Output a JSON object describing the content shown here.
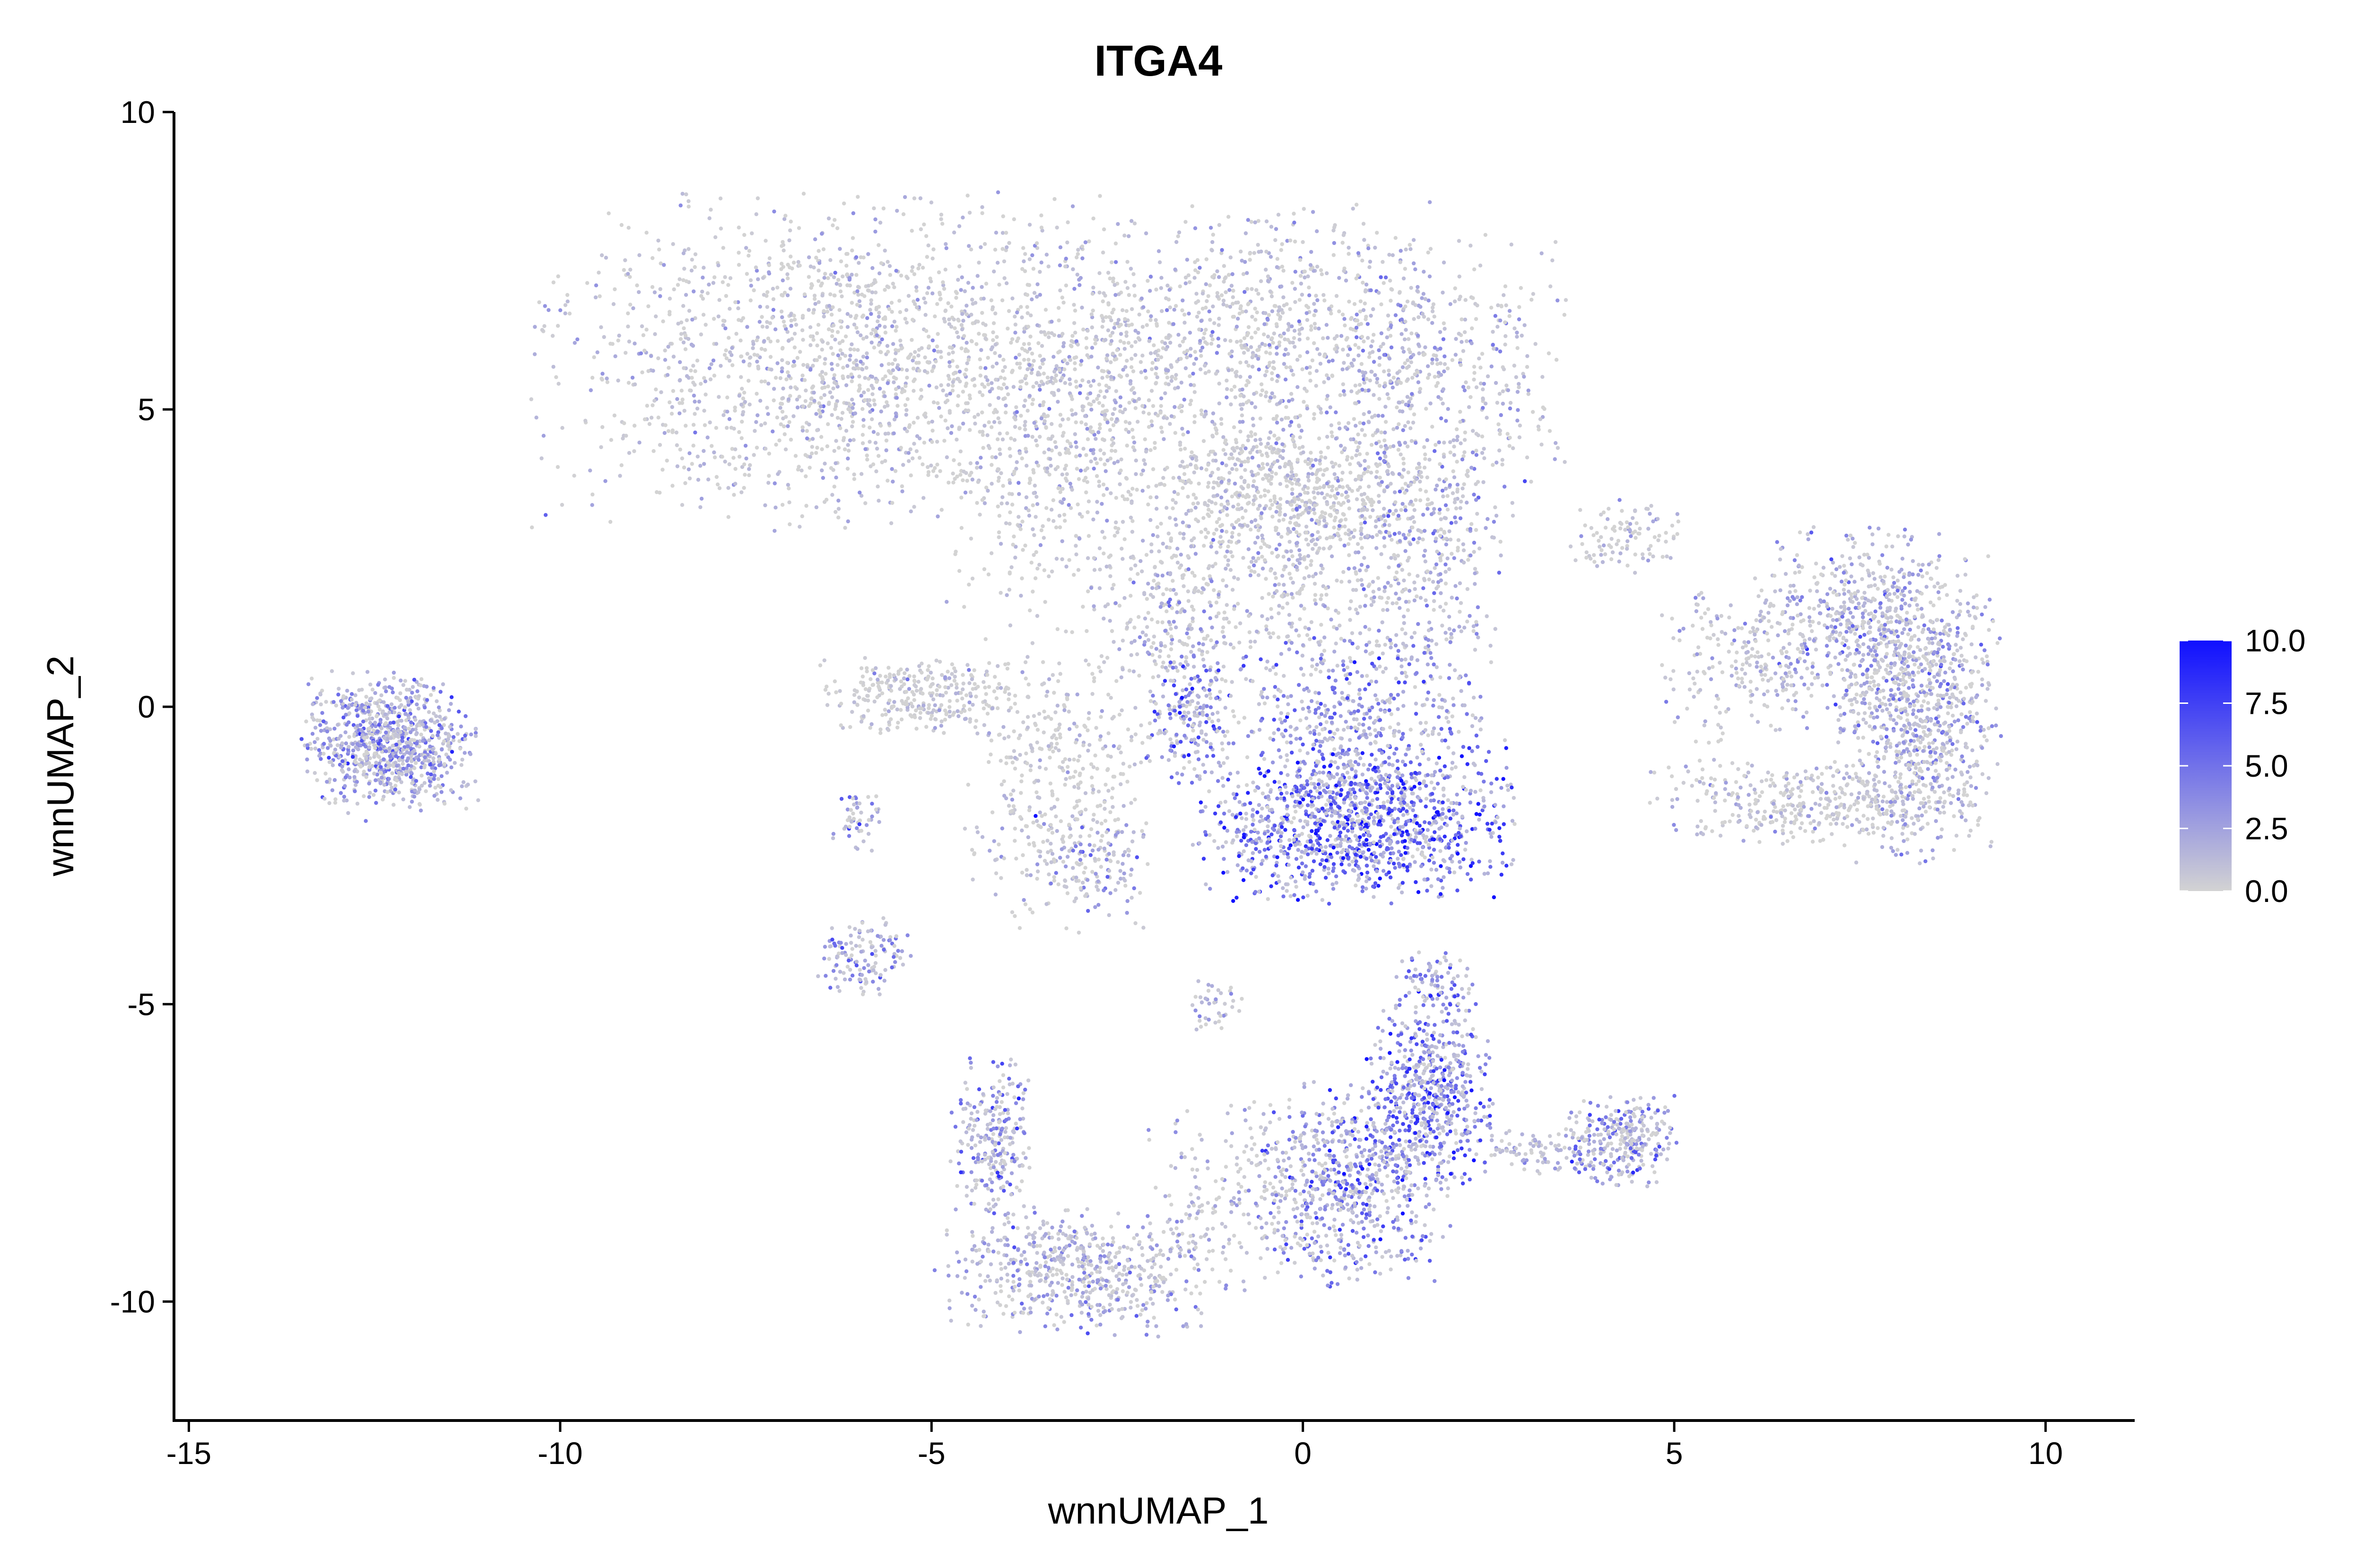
{
  "chart_data": {
    "type": "scatter",
    "title": "ITGA4",
    "xlabel": "wnnUMAP_1",
    "ylabel": "wnnUMAP_2",
    "xlim": [
      -15.2,
      11.2
    ],
    "ylim": [
      -12,
      10
    ],
    "xticks": [
      -15,
      -10,
      -5,
      0,
      5,
      10
    ],
    "xtick_labels": [
      "-15",
      "-10",
      "-5",
      "0",
      "5",
      "10"
    ],
    "yticks": [
      -10,
      -5,
      0,
      5,
      10
    ],
    "ytick_labels": [
      "-10",
      "-5",
      "0",
      "5",
      "10"
    ],
    "grid": false,
    "legend_position": "right",
    "color_scale": {
      "min": 0,
      "max": 10,
      "low_color": "#d3d3d3",
      "high_color": "#1010ff",
      "ticks": [
        10,
        7.5,
        5,
        2.5,
        0
      ],
      "tick_labels": [
        "10.0",
        "7.5",
        "5.0",
        "2.5",
        "0.0"
      ]
    },
    "clusters": [
      {
        "cx": -6.0,
        "cy": 5.8,
        "sx": 2.0,
        "sy": 1.3,
        "n": 1800,
        "level": 0.7
      },
      {
        "cx": -0.9,
        "cy": 6.1,
        "sx": 1.3,
        "sy": 1.1,
        "n": 1000,
        "level": 1.0
      },
      {
        "cx": -0.2,
        "cy": 3.6,
        "sx": 0.9,
        "sy": 0.6,
        "n": 600,
        "level": 0.5
      },
      {
        "cx": 1.8,
        "cy": 5.4,
        "sx": 0.8,
        "sy": 1.2,
        "n": 500,
        "level": 1.6
      },
      {
        "cx": -3.3,
        "cy": 4.0,
        "sx": 0.7,
        "sy": 1.3,
        "n": 400,
        "level": 0.4
      },
      {
        "cx": -0.5,
        "cy": 2.2,
        "sx": 1.1,
        "sy": 1.0,
        "n": 500,
        "level": 0.9
      },
      {
        "cx": 1.7,
        "cy": 2.5,
        "sx": 0.5,
        "sy": 1.0,
        "n": 300,
        "level": 2.2
      },
      {
        "cx": -1.7,
        "cy": 1.0,
        "sx": 0.4,
        "sy": 0.9,
        "n": 200,
        "level": 1.4
      },
      {
        "cx": -1.5,
        "cy": -0.2,
        "sx": 0.3,
        "sy": 0.5,
        "n": 150,
        "level": 4.5
      },
      {
        "cx": 0.8,
        "cy": -0.5,
        "sx": 0.9,
        "sy": 0.9,
        "n": 600,
        "level": 3.5
      },
      {
        "cx": 0.7,
        "cy": -2.0,
        "sx": 1.0,
        "sy": 0.6,
        "n": 1100,
        "level": 5.5
      },
      {
        "cx": -5.2,
        "cy": 0.2,
        "sx": 0.6,
        "sy": 0.3,
        "n": 300,
        "level": 0.2
      },
      {
        "cx": -3.3,
        "cy": -1.2,
        "sx": 0.6,
        "sy": 1.2,
        "n": 400,
        "level": 0.4
      },
      {
        "cx": -2.9,
        "cy": -2.6,
        "sx": 0.4,
        "sy": 0.4,
        "n": 120,
        "level": 2.2
      },
      {
        "cx": -6.0,
        "cy": -1.9,
        "sx": 0.15,
        "sy": 0.3,
        "n": 50,
        "level": 2.5
      },
      {
        "cx": -5.9,
        "cy": -4.2,
        "sx": 0.3,
        "sy": 0.3,
        "n": 130,
        "level": 3.0
      },
      {
        "cx": -12.3,
        "cy": -0.6,
        "sx": 0.55,
        "sy": 0.55,
        "n": 900,
        "level": 2.8
      },
      {
        "cx": 7.4,
        "cy": 1.3,
        "sx": 0.6,
        "sy": 0.8,
        "n": 500,
        "level": 2.0
      },
      {
        "cx": 8.3,
        "cy": 0.0,
        "sx": 0.5,
        "sy": 1.2,
        "n": 900,
        "level": 1.8
      },
      {
        "cx": 6.8,
        "cy": -1.6,
        "sx": 1.0,
        "sy": 0.35,
        "n": 400,
        "level": 0.6
      },
      {
        "cx": 5.9,
        "cy": 0.7,
        "sx": 0.5,
        "sy": 0.6,
        "n": 200,
        "level": 0.8
      },
      {
        "cx": 4.3,
        "cy": 2.9,
        "sx": 0.4,
        "sy": 0.3,
        "n": 100,
        "level": 0.6
      },
      {
        "cx": 1.8,
        "cy": -4.6,
        "sx": 0.25,
        "sy": 0.25,
        "n": 80,
        "level": 4.5
      },
      {
        "cx": 1.7,
        "cy": -6.5,
        "sx": 0.4,
        "sy": 0.8,
        "n": 600,
        "level": 4.8
      },
      {
        "cx": 0.7,
        "cy": -8.0,
        "sx": 0.6,
        "sy": 0.8,
        "n": 600,
        "level": 3.8
      },
      {
        "cx": -0.6,
        "cy": -8.2,
        "sx": 0.7,
        "sy": 0.8,
        "n": 250,
        "level": 1.2
      },
      {
        "cx": 4.3,
        "cy": -7.3,
        "sx": 0.35,
        "sy": 0.35,
        "n": 300,
        "level": 3.0
      },
      {
        "cx": 3.2,
        "cy": -7.5,
        "sx": 0.4,
        "sy": 0.2,
        "n": 80,
        "level": 1.5
      },
      {
        "cx": -4.2,
        "cy": -7.3,
        "sx": 0.25,
        "sy": 0.7,
        "n": 250,
        "level": 2.8
      },
      {
        "cx": -3.0,
        "cy": -9.5,
        "sx": 0.9,
        "sy": 0.5,
        "n": 600,
        "level": 1.8
      },
      {
        "cx": -1.2,
        "cy": -5.0,
        "sx": 0.2,
        "sy": 0.2,
        "n": 40,
        "level": 1.2
      }
    ]
  }
}
